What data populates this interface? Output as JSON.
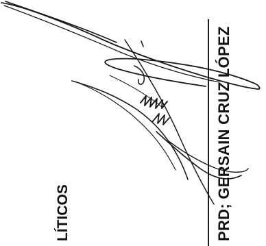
{
  "document": {
    "signer_name": "PRD; GERSAIN CRUZ LÓPEZ",
    "partial_word": "LÍTICOS"
  },
  "signature": {
    "ink_color": "#1a1a1a"
  }
}
